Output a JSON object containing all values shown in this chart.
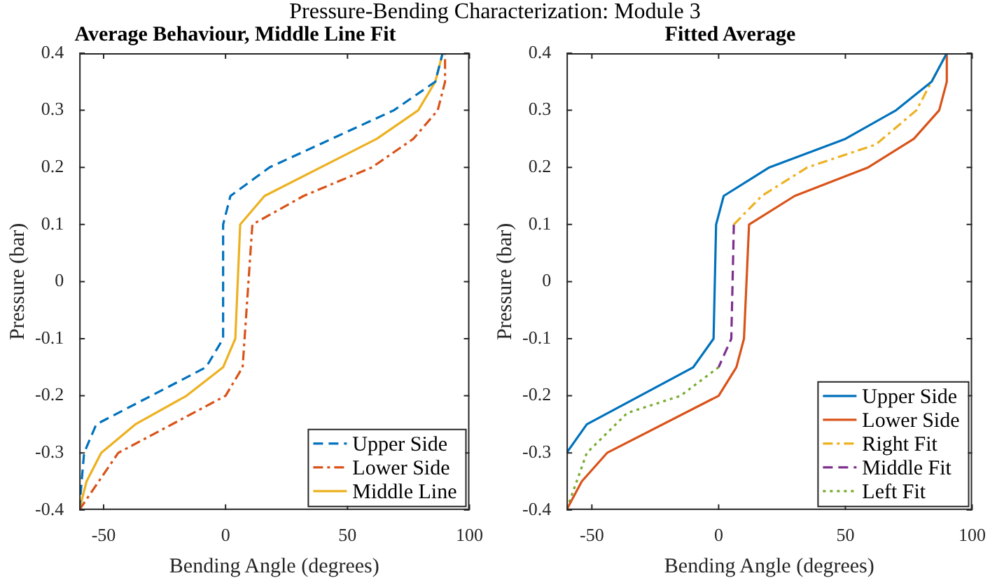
{
  "chart_data": [
    {
      "type": "line",
      "title": "Average Behaviour, Middle Line Fit",
      "xlabel": "Bending Angle (degrees)",
      "ylabel": "Pressure (bar)",
      "annotations": [
        "Pressure-Bending Characterization: Module 3"
      ],
      "xlim": [
        -60,
        100
      ],
      "xticks": [
        -50,
        0,
        50,
        100
      ],
      "ylim": [
        -0.4,
        0.4
      ],
      "yticks": [
        -0.4,
        -0.3,
        -0.2,
        -0.1,
        0,
        0.1,
        0.2,
        0.3,
        0.4
      ],
      "legend": "bottom right",
      "series": [
        {
          "name": "Upper Side",
          "color": "#0072bd",
          "line_style": "dashed",
          "x": [
            -60,
            -58,
            -53,
            -8,
            -1,
            -1,
            2,
            18,
            69,
            86,
            89
          ],
          "values": [
            -0.4,
            -0.3,
            -0.25,
            -0.15,
            -0.1,
            0.1,
            0.15,
            0.2,
            0.3,
            0.35,
            0.4
          ]
        },
        {
          "name": "Lower Side",
          "color": "#d95319",
          "line_style": "dashdot",
          "x": [
            -60,
            -52,
            -44,
            0,
            7,
            11,
            32,
            60,
            77,
            87,
            90,
            90
          ],
          "values": [
            -0.4,
            -0.35,
            -0.3,
            -0.2,
            -0.15,
            0.1,
            0.15,
            0.2,
            0.25,
            0.3,
            0.35,
            0.4
          ]
        },
        {
          "name": "Middle Line",
          "color": "#edb120",
          "line_style": "solid",
          "x": [
            -60,
            -57,
            -51,
            -37,
            -16,
            -1,
            4,
            6,
            16,
            62,
            79,
            86,
            89
          ],
          "values": [
            -0.4,
            -0.35,
            -0.3,
            -0.25,
            -0.2,
            -0.15,
            -0.1,
            0.1,
            0.15,
            0.25,
            0.3,
            0.35,
            0.4
          ]
        }
      ]
    },
    {
      "type": "line",
      "title": "Fitted Average",
      "xlabel": "Bending Angle (degrees)",
      "ylabel": "Pressure (bar)",
      "xlim": [
        -60,
        100
      ],
      "xticks": [
        -50,
        0,
        50,
        100
      ],
      "ylim": [
        -0.4,
        0.4
      ],
      "yticks": [
        -0.4,
        -0.3,
        -0.2,
        -0.1,
        0,
        0.1,
        0.2,
        0.3,
        0.4
      ],
      "legend": "bottom right",
      "series": [
        {
          "name": "Upper Side",
          "color": "#0072bd",
          "line_style": "solid",
          "x": [
            -60,
            -52,
            -10,
            -2,
            -1,
            2,
            20,
            50,
            70,
            84,
            90
          ],
          "values": [
            -0.3,
            -0.25,
            -0.15,
            -0.1,
            0.1,
            0.15,
            0.2,
            0.25,
            0.3,
            0.35,
            0.4
          ]
        },
        {
          "name": "Lower Side",
          "color": "#d95319",
          "line_style": "solid",
          "x": [
            -60,
            -54,
            -44,
            0,
            7,
            10,
            12,
            30,
            59,
            77,
            87,
            90,
            90
          ],
          "values": [
            -0.4,
            -0.35,
            -0.3,
            -0.2,
            -0.15,
            -0.1,
            0.1,
            0.15,
            0.2,
            0.25,
            0.3,
            0.35,
            0.4
          ]
        },
        {
          "name": "Right Fit",
          "color": "#edb120",
          "line_style": "dashdot",
          "x": [
            6,
            17,
            35,
            62,
            78,
            90
          ],
          "values": [
            0.1,
            0.15,
            0.2,
            0.24,
            0.3,
            0.4
          ]
        },
        {
          "name": "Middle Fit",
          "color": "#7e2f8e",
          "line_style": "dashed",
          "x": [
            6,
            5,
            0
          ],
          "values": [
            0.1,
            -0.1,
            -0.15
          ]
        },
        {
          "name": "Left Fit",
          "color": "#77ac30",
          "line_style": "dotted",
          "x": [
            0,
            -15,
            -36,
            -52,
            -60
          ],
          "values": [
            -0.15,
            -0.2,
            -0.23,
            -0.3,
            -0.4
          ]
        }
      ]
    }
  ]
}
